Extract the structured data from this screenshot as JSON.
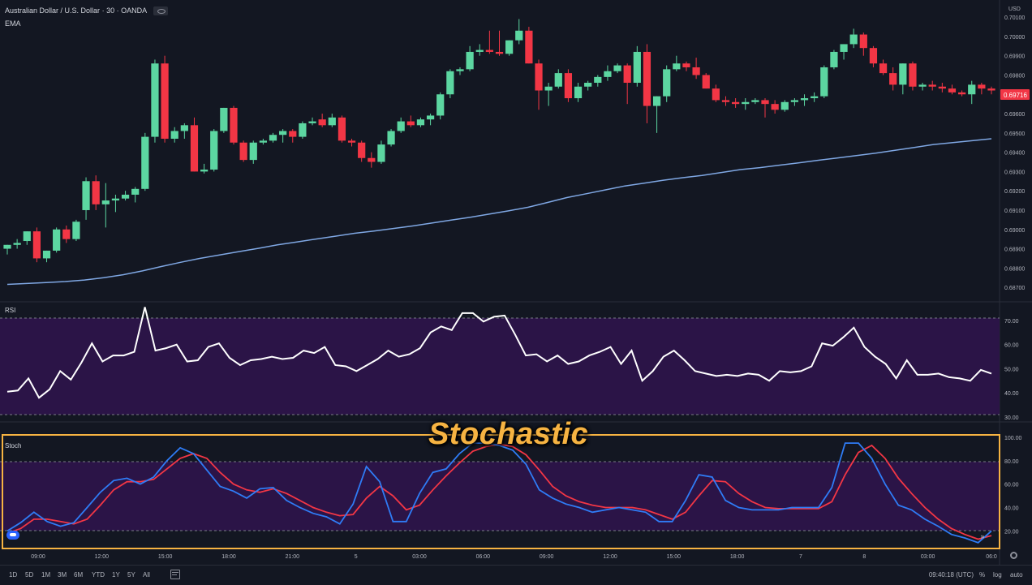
{
  "legend": {
    "symbol": "Australian Dollar / U.S. Dollar",
    "interval": "30",
    "source": "OANDA",
    "ema": "EMA"
  },
  "price_scale": {
    "currency": "USD",
    "ticks": [
      "0.70100",
      "0.70000",
      "0.69900",
      "0.69800",
      "0.69700",
      "0.69600",
      "0.69500",
      "0.69400",
      "0.69300",
      "0.69200",
      "0.69100",
      "0.69000",
      "0.68900",
      "0.68800",
      "0.68700"
    ],
    "last_price": "0.69716",
    "last_price_color": "#f23645"
  },
  "rsi_pane": {
    "label": "RSI",
    "ticks": [
      "70.00",
      "60.00",
      "50.00",
      "40.00",
      "30.00"
    ]
  },
  "stoch_pane": {
    "label": "Stoch",
    "ticks": [
      "100.00",
      "80.00",
      "60.00",
      "40.00",
      "20.00"
    ],
    "annotation": "Stochastic"
  },
  "time_axis": {
    "ticks": [
      "09:00",
      "12:00",
      "15:00",
      "18:00",
      "21:00",
      "5",
      "03:00",
      "06:00",
      "09:00",
      "12:00",
      "15:00",
      "18:00",
      "7",
      "8",
      "03:00",
      "06:0"
    ]
  },
  "bottom_bar": {
    "ranges": [
      "1D",
      "5D",
      "1M",
      "3M",
      "6M",
      "YTD",
      "1Y",
      "5Y",
      "All"
    ],
    "time_status": "09:40:18 (UTC)",
    "percent": "%",
    "log": "log",
    "auto": "auto"
  },
  "colors": {
    "background": "#131722",
    "up": "#26a69a",
    "up_body": "#5cd6a1",
    "down": "#f23645",
    "ema": "#7fa7e3",
    "rsi_line": "#ffffff",
    "band_fill": "#2b1447",
    "stoch_k": "#2f7cf6",
    "stoch_d": "#f23645",
    "annotation": "#f6b342"
  },
  "chart_data": [
    {
      "type": "candlestick",
      "title": "",
      "ylim": [
        0.6865,
        0.7013
      ],
      "ohlc": [
        [
          0.689,
          0.6892,
          0.6887,
          0.6892
        ],
        [
          0.6892,
          0.6895,
          0.689,
          0.6893
        ],
        [
          0.6894,
          0.6899,
          0.6892,
          0.6899
        ],
        [
          0.6899,
          0.6901,
          0.6883,
          0.6885
        ],
        [
          0.6885,
          0.6889,
          0.6883,
          0.6889
        ],
        [
          0.6889,
          0.6901,
          0.6888,
          0.69
        ],
        [
          0.69,
          0.6902,
          0.6893,
          0.6895
        ],
        [
          0.6895,
          0.6905,
          0.6894,
          0.6904
        ],
        [
          0.691,
          0.6927,
          0.6905,
          0.6925
        ],
        [
          0.6925,
          0.6928,
          0.691,
          0.6913
        ],
        [
          0.6913,
          0.6924,
          0.6901,
          0.6915
        ],
        [
          0.6915,
          0.6918,
          0.6909,
          0.6916
        ],
        [
          0.6916,
          0.692,
          0.6915,
          0.6918
        ],
        [
          0.6918,
          0.6922,
          0.6914,
          0.6921
        ],
        [
          0.6921,
          0.695,
          0.692,
          0.6948
        ],
        [
          0.6948,
          0.6988,
          0.6945,
          0.6986
        ],
        [
          0.6986,
          0.699,
          0.6945,
          0.6947
        ],
        [
          0.6947,
          0.6953,
          0.6945,
          0.6951
        ],
        [
          0.6951,
          0.6955,
          0.6947,
          0.6954
        ],
        [
          0.6954,
          0.6958,
          0.693,
          0.693
        ],
        [
          0.693,
          0.6934,
          0.6929,
          0.6931
        ],
        [
          0.6931,
          0.6952,
          0.693,
          0.6951
        ],
        [
          0.6951,
          0.6963,
          0.695,
          0.6963
        ],
        [
          0.6963,
          0.6964,
          0.6944,
          0.6945
        ],
        [
          0.6945,
          0.6946,
          0.6935,
          0.6936
        ],
        [
          0.6936,
          0.6946,
          0.6934,
          0.6945
        ],
        [
          0.6945,
          0.6947,
          0.6944,
          0.6946
        ],
        [
          0.6946,
          0.695,
          0.6945,
          0.6949
        ],
        [
          0.6949,
          0.6952,
          0.6945,
          0.6951
        ],
        [
          0.6951,
          0.6952,
          0.6945,
          0.6948
        ],
        [
          0.6948,
          0.6956,
          0.6947,
          0.6955
        ],
        [
          0.6955,
          0.6958,
          0.6954,
          0.6956
        ],
        [
          0.6957,
          0.696,
          0.6953,
          0.6954
        ],
        [
          0.6954,
          0.696,
          0.6953,
          0.6958
        ],
        [
          0.6958,
          0.6959,
          0.6945,
          0.6946
        ],
        [
          0.6946,
          0.6947,
          0.6943,
          0.6945
        ],
        [
          0.6945,
          0.6946,
          0.6935,
          0.6937
        ],
        [
          0.6937,
          0.694,
          0.6932,
          0.6935
        ],
        [
          0.6935,
          0.6946,
          0.6934,
          0.6944
        ],
        [
          0.6944,
          0.6952,
          0.6943,
          0.6951
        ],
        [
          0.6951,
          0.6958,
          0.695,
          0.6956
        ],
        [
          0.6956,
          0.6959,
          0.6953,
          0.6954
        ],
        [
          0.6954,
          0.6958,
          0.6953,
          0.6957
        ],
        [
          0.6957,
          0.696,
          0.6954,
          0.6959
        ],
        [
          0.6959,
          0.6971,
          0.6957,
          0.697
        ],
        [
          0.697,
          0.6983,
          0.6968,
          0.6982
        ],
        [
          0.6982,
          0.6984,
          0.698,
          0.6983
        ],
        [
          0.6983,
          0.6995,
          0.6982,
          0.6992
        ],
        [
          0.6992,
          0.6996,
          0.699,
          0.6993
        ],
        [
          0.6993,
          0.7003,
          0.6991,
          0.6992
        ],
        [
          0.6992,
          0.7003,
          0.699,
          0.6991
        ],
        [
          0.6991,
          0.6998,
          0.699,
          0.6998
        ],
        [
          0.6998,
          0.7009,
          0.6996,
          0.7003
        ],
        [
          0.7003,
          0.7005,
          0.6986,
          0.6986
        ],
        [
          0.6986,
          0.6988,
          0.6962,
          0.6972
        ],
        [
          0.6972,
          0.6976,
          0.6964,
          0.6974
        ],
        [
          0.6974,
          0.6983,
          0.6973,
          0.6981
        ],
        [
          0.6981,
          0.6983,
          0.6966,
          0.6968
        ],
        [
          0.6968,
          0.6976,
          0.6966,
          0.6974
        ],
        [
          0.6974,
          0.6977,
          0.6972,
          0.6976
        ],
        [
          0.6976,
          0.698,
          0.6974,
          0.6979
        ],
        [
          0.6979,
          0.6985,
          0.6977,
          0.6982
        ],
        [
          0.6982,
          0.6986,
          0.6981,
          0.6985
        ],
        [
          0.6985,
          0.6986,
          0.6965,
          0.6976
        ],
        [
          0.6976,
          0.6995,
          0.6974,
          0.6992
        ],
        [
          0.6992,
          0.6996,
          0.6955,
          0.6964
        ],
        [
          0.6964,
          0.6969,
          0.695,
          0.6969
        ],
        [
          0.6969,
          0.6985,
          0.6966,
          0.6983
        ],
        [
          0.6983,
          0.699,
          0.6982,
          0.6986
        ],
        [
          0.6986,
          0.6987,
          0.6982,
          0.6984
        ],
        [
          0.6984,
          0.6989,
          0.6978,
          0.698
        ],
        [
          0.698,
          0.6981,
          0.6973,
          0.6973
        ],
        [
          0.6973,
          0.6975,
          0.6966,
          0.6967
        ],
        [
          0.6967,
          0.6969,
          0.6964,
          0.6966
        ],
        [
          0.6966,
          0.6968,
          0.6963,
          0.6965
        ],
        [
          0.6965,
          0.6968,
          0.6962,
          0.6966
        ],
        [
          0.6966,
          0.6968,
          0.6965,
          0.6967
        ],
        [
          0.6967,
          0.6968,
          0.6958,
          0.6965
        ],
        [
          0.6965,
          0.6967,
          0.696,
          0.6962
        ],
        [
          0.6962,
          0.6967,
          0.6961,
          0.6966
        ],
        [
          0.6966,
          0.6968,
          0.6964,
          0.6967
        ],
        [
          0.6967,
          0.697,
          0.6964,
          0.6968
        ],
        [
          0.6968,
          0.6971,
          0.6966,
          0.6969
        ],
        [
          0.6969,
          0.6985,
          0.6968,
          0.6984
        ],
        [
          0.6984,
          0.6993,
          0.6983,
          0.6992
        ],
        [
          0.6992,
          0.6996,
          0.6988,
          0.6996
        ],
        [
          0.6996,
          0.7004,
          0.6994,
          0.7001
        ],
        [
          0.7001,
          0.7002,
          0.699,
          0.6994
        ],
        [
          0.6994,
          0.6995,
          0.6984,
          0.6986
        ],
        [
          0.6986,
          0.6988,
          0.698,
          0.6981
        ],
        [
          0.6981,
          0.6984,
          0.6972,
          0.6975
        ],
        [
          0.6975,
          0.6986,
          0.697,
          0.6986
        ],
        [
          0.6986,
          0.6987,
          0.6972,
          0.6974
        ],
        [
          0.6974,
          0.6976,
          0.6972,
          0.6975
        ],
        [
          0.6975,
          0.6977,
          0.6972,
          0.6974
        ],
        [
          0.6974,
          0.6976,
          0.6971,
          0.6973
        ],
        [
          0.6973,
          0.6975,
          0.697,
          0.6971
        ],
        [
          0.6971,
          0.6972,
          0.6969,
          0.697
        ],
        [
          0.697,
          0.6977,
          0.6965,
          0.6975
        ],
        [
          0.6975,
          0.6976,
          0.697,
          0.6973
        ],
        [
          0.6973,
          0.6974,
          0.697,
          0.6972
        ]
      ],
      "ema": [
        0.68715,
        0.6872,
        0.68725,
        0.6873,
        0.68738,
        0.6875,
        0.68765,
        0.68785,
        0.68808,
        0.6883,
        0.6885,
        0.68868,
        0.68885,
        0.68902,
        0.6892,
        0.68935,
        0.6895,
        0.68965,
        0.6898,
        0.68992,
        0.69005,
        0.69018,
        0.69033,
        0.69048,
        0.69063,
        0.6908,
        0.69097,
        0.69115,
        0.6914,
        0.69165,
        0.69185,
        0.69205,
        0.69225,
        0.6924,
        0.69255,
        0.69268,
        0.6928,
        0.69295,
        0.6931,
        0.6932,
        0.69333,
        0.69345,
        0.69358,
        0.6937,
        0.69383,
        0.69395,
        0.6941,
        0.69425,
        0.6944,
        0.6945,
        0.6946,
        0.6947
      ]
    },
    {
      "type": "line",
      "title": "RSI",
      "ylim": [
        28,
        77
      ],
      "bands": [
        30,
        70
      ],
      "values": [
        40.5,
        41,
        46,
        38,
        41.5,
        49,
        45.5,
        52.5,
        60.5,
        53,
        55.5,
        55.5,
        57,
        75.5,
        57.5,
        58.5,
        60,
        53,
        53.5,
        59,
        60.5,
        54.5,
        51.5,
        53.5,
        54,
        55,
        54,
        54.5,
        57.5,
        56.5,
        59,
        51.5,
        51,
        49,
        51.5,
        54,
        57.5,
        55,
        56,
        58.5,
        65,
        67.5,
        66,
        73,
        73,
        69.5,
        71.5,
        72,
        64,
        55.5,
        56,
        53,
        55.5,
        52,
        53,
        55.5,
        57,
        59,
        52,
        57.5,
        45,
        49,
        55,
        57.5,
        53.5,
        49,
        48,
        47,
        47.5,
        47,
        48,
        47.5,
        45,
        49,
        48.5,
        49,
        51,
        60.5,
        59.5,
        63,
        67,
        59,
        55,
        52,
        46,
        53.5,
        47.5,
        47.5,
        48,
        46.5,
        46,
        45,
        49.5,
        48
      ]
    },
    {
      "type": "line",
      "title": "Stoch",
      "ylim": [
        5,
        102
      ],
      "bands": [
        20,
        80
      ],
      "series": [
        {
          "name": "",
          "values": [
            20,
            27,
            36,
            28,
            24,
            27,
            40,
            53,
            63,
            65,
            60,
            66,
            80,
            91,
            86,
            72,
            58,
            54,
            48,
            56,
            57,
            46,
            40,
            35,
            32,
            26,
            43,
            75,
            62,
            28,
            28,
            52,
            70,
            73,
            86,
            95,
            95,
            93,
            89,
            77,
            55,
            48,
            43,
            40,
            36,
            38,
            40,
            38,
            36,
            28,
            28,
            46,
            68,
            66,
            46,
            40,
            38,
            38,
            38,
            40,
            40,
            40,
            57,
            95,
            95,
            82,
            60,
            42,
            38,
            30,
            24,
            17,
            14,
            10,
            20
          ]
        },
        {
          "name": "",
          "values": [
            18,
            22,
            30,
            30,
            28,
            26,
            30,
            42,
            55,
            62,
            62,
            64,
            73,
            82,
            86,
            82,
            70,
            60,
            55,
            53,
            56,
            52,
            46,
            40,
            36,
            33,
            34,
            48,
            58,
            50,
            38,
            42,
            55,
            67,
            78,
            88,
            92,
            94,
            92,
            85,
            72,
            58,
            50,
            45,
            42,
            40,
            40,
            40,
            38,
            34,
            30,
            36,
            50,
            63,
            62,
            52,
            45,
            40,
            39,
            39,
            39,
            39,
            45,
            68,
            87,
            93,
            82,
            65,
            52,
            40,
            30,
            22,
            17,
            13,
            16
          ]
        }
      ]
    }
  ]
}
